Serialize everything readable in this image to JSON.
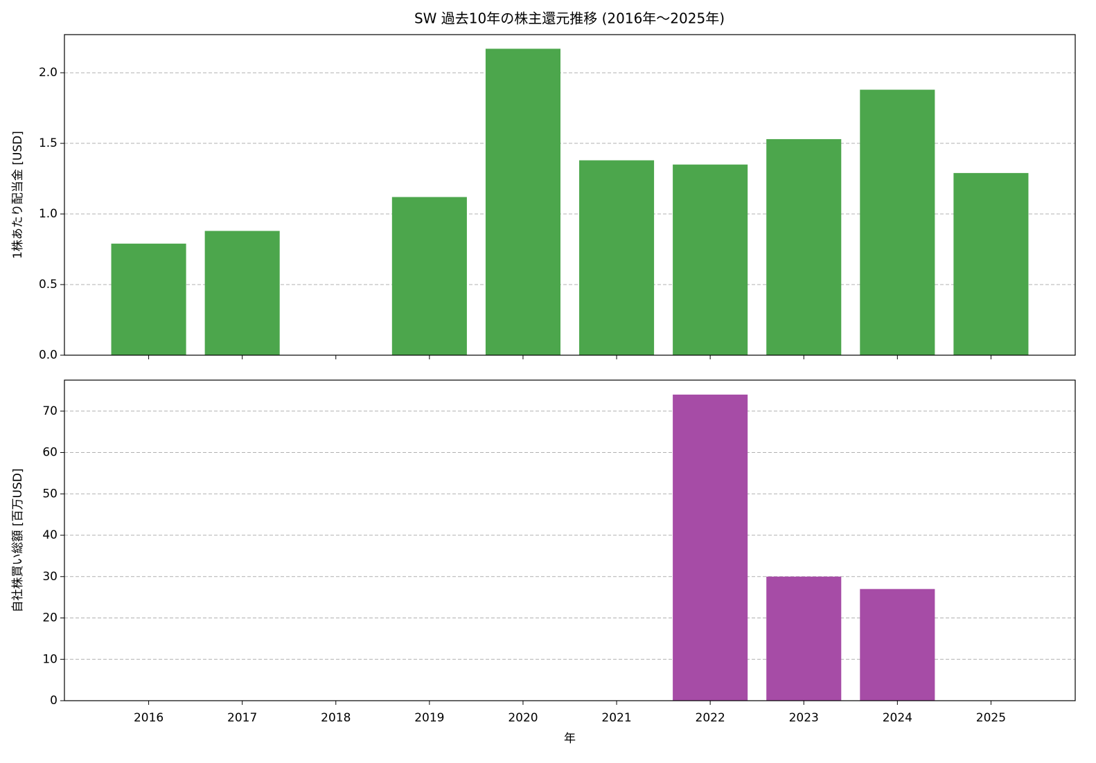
{
  "chart_data": [
    {
      "type": "bar",
      "title": "SW 過去10年の株主還元推移 (2016年～2025年)",
      "ylabel": "1株あたり配当金 [USD]",
      "values": [
        0.79,
        0.88,
        0,
        1.12,
        2.17,
        1.38,
        1.35,
        1.53,
        1.88,
        1.29
      ],
      "color": "#4ca64c",
      "ylim": [
        0,
        2.27
      ],
      "yticks": [
        {
          "value": 0,
          "label": "0.0"
        },
        0.5,
        {
          "value": 1,
          "label": "1.0"
        },
        1.5,
        {
          "value": 2,
          "label": "2.0"
        }
      ],
      "grid": true
    },
    {
      "type": "bar",
      "xlabel": "年",
      "ylabel": "自社株買い総額 [百万USD]",
      "categories": [
        "2016",
        "2017",
        "2018",
        "2019",
        "2020",
        "2021",
        "2022",
        "2023",
        "2024",
        "2025"
      ],
      "values": [
        0,
        0,
        0,
        0,
        0,
        0,
        74,
        30,
        27,
        0
      ],
      "color": "#a64ca6",
      "ylim": [
        0,
        77.5
      ],
      "yticks": [
        0,
        10,
        20,
        30,
        40,
        50,
        60,
        70
      ],
      "grid": true
    }
  ]
}
